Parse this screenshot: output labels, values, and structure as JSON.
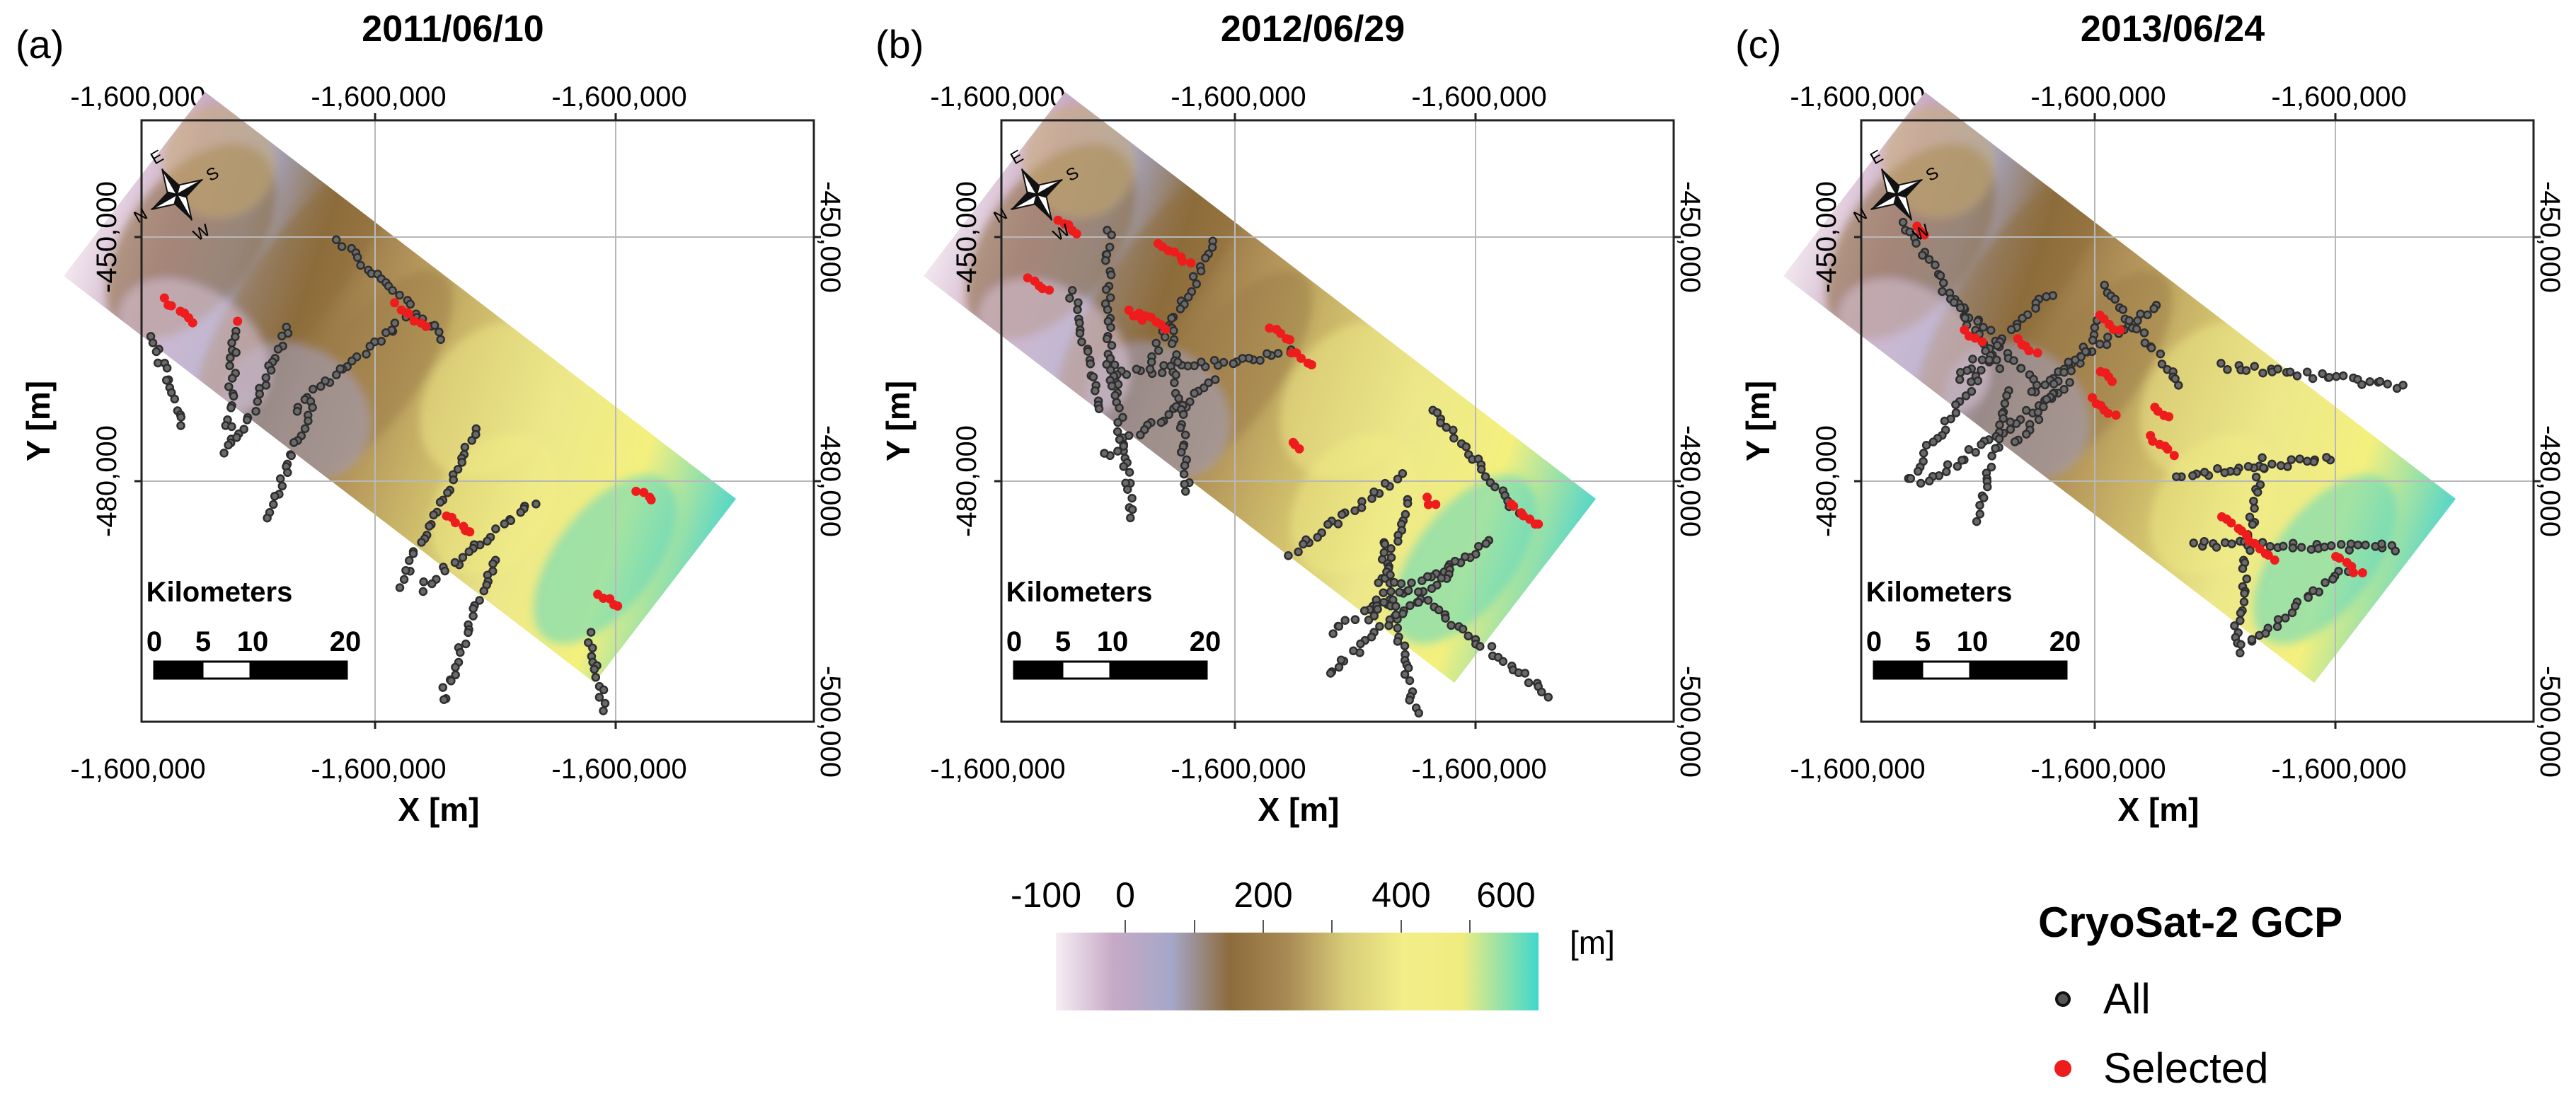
{
  "colors": {
    "all_points": "#2e2e2e",
    "selected_points": "#ee1c1c",
    "frame": "#222222",
    "grid": "#c8c8c8",
    "dem_stops": [
      "#f3e8ef",
      "#c8a9c4",
      "#a8a7c6",
      "#8c6d3c",
      "#b09058",
      "#cdbb6a",
      "#ece88a",
      "#f4f07e",
      "#56d6c8"
    ]
  },
  "panels": [
    {
      "label": "(a)",
      "date": "2011/06/10",
      "x_ticks": [
        "-1,600,000",
        "-1,600,000",
        "-1,600,000"
      ],
      "y_ticks": [
        "-450,000",
        "-480,000",
        "-500,000"
      ],
      "x_axis_label": "X [m]",
      "y_axis_label": "Y [m]",
      "all_count": 240,
      "selected_count": 30
    },
    {
      "label": "(b)",
      "date": "2012/06/29",
      "x_ticks": [
        "-1,600,000",
        "-1,600,000",
        "-1,600,000"
      ],
      "y_ticks": [
        "-450,000",
        "-480,000",
        "-500,000"
      ],
      "x_axis_label": "X [m]",
      "y_axis_label": "Y [m]",
      "all_count": 360,
      "selected_count": 50
    },
    {
      "label": "(c)",
      "date": "2013/06/24",
      "x_ticks": [
        "-1,600,000",
        "-1,600,000",
        "-1,600,000"
      ],
      "y_ticks": [
        "-450,000",
        "-480,000",
        "-500,000"
      ],
      "x_axis_label": "X [m]",
      "y_axis_label": "Y [m]",
      "all_count": 380,
      "selected_count": 55
    }
  ],
  "scale_bar": {
    "title": "Kilometers",
    "labels": [
      "0",
      "5",
      "10",
      "20"
    ],
    "values": [
      0,
      5,
      10,
      20
    ]
  },
  "compass": {
    "letters": [
      "N",
      "E",
      "S",
      "W"
    ]
  },
  "colorbar": {
    "tick_labels": [
      "-100",
      "0",
      "200",
      "400",
      "600"
    ],
    "tick_values": [
      -100,
      0,
      200,
      400,
      600
    ],
    "range": [
      -100,
      600
    ],
    "unit": "[m]"
  },
  "legend": {
    "title": "CryoSat-2 GCP",
    "items": [
      {
        "label": "All",
        "color": "#2e2e2e"
      },
      {
        "label": "Selected",
        "color": "#ee1c1c"
      }
    ]
  }
}
